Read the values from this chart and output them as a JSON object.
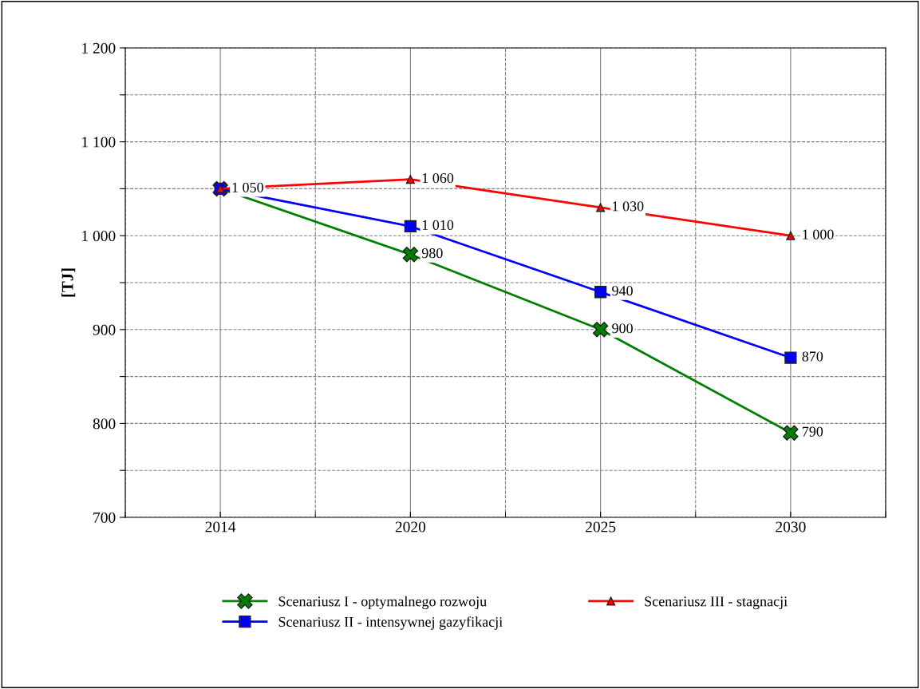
{
  "chart_data": {
    "type": "line",
    "ylabel": "[TJ]",
    "categories": [
      "2014",
      "2020",
      "2025",
      "2030"
    ],
    "series": [
      {
        "name": "Scenariusz I - optymalnego rozwoju",
        "color": "#008000",
        "marker": "cross",
        "values": [
          1050,
          980,
          900,
          790
        ],
        "value_labels": [
          null,
          "980",
          "900",
          "790"
        ]
      },
      {
        "name": "Scenariusz II - intensywnej gazyfikacji",
        "color": "#0000ff",
        "marker": "square",
        "values": [
          1050,
          1010,
          940,
          870
        ],
        "value_labels": [
          null,
          "1 010",
          "940",
          "870"
        ]
      },
      {
        "name": "Scenariusz III - stagnacji",
        "color": "#ff0000",
        "marker": "triangle",
        "values": [
          1050,
          1060,
          1030,
          1000
        ],
        "value_labels": [
          "1 050",
          "1 060",
          "1 030",
          "1 000"
        ]
      }
    ],
    "ylim": [
      700,
      1200
    ],
    "yticks": [
      {
        "value": 700,
        "label": "700"
      },
      {
        "value": 750,
        "label": null
      },
      {
        "value": 800,
        "label": "800"
      },
      {
        "value": 850,
        "label": null
      },
      {
        "value": 900,
        "label": "900"
      },
      {
        "value": 950,
        "label": null
      },
      {
        "value": 1000,
        "label": "1 000"
      },
      {
        "value": 1050,
        "label": null
      },
      {
        "value": 1100,
        "label": "1 100"
      },
      {
        "value": 1150,
        "label": null
      },
      {
        "value": 1200,
        "label": "1 200"
      }
    ],
    "grid": true,
    "legend": "bottom",
    "line_style": "solid"
  }
}
